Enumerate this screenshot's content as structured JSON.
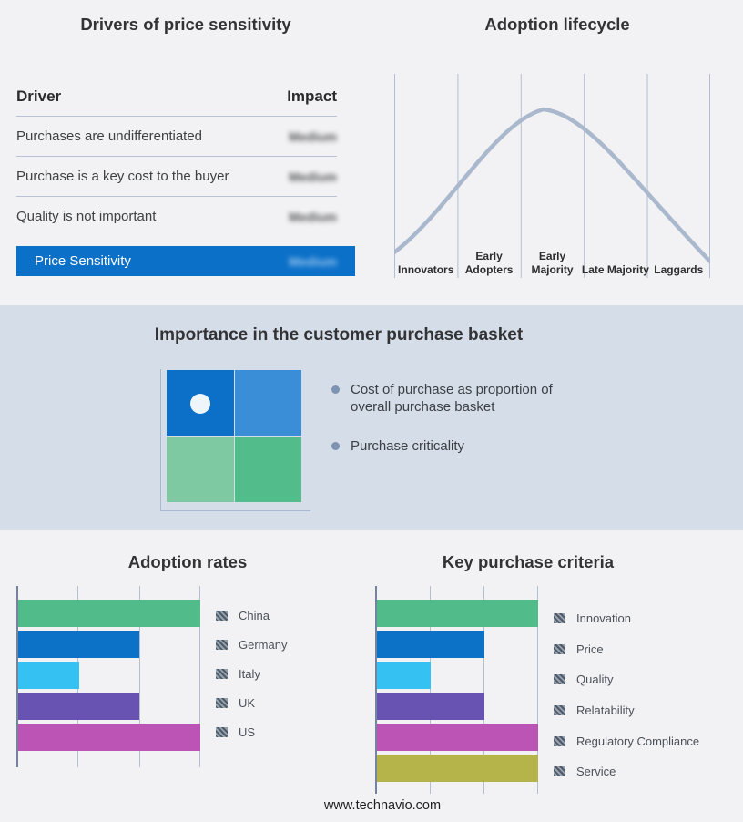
{
  "page": {
    "footer": "www.technavio.com"
  },
  "colors": {
    "page_bg": "#f2f2f4",
    "band_bg": "#d4dde8",
    "accent_blue": "#0b70c8",
    "grid_line": "#b3bfd2",
    "axis_line": "#74839e",
    "curve_line": "#a9b8cd",
    "bullet_dot": "#7e93b2"
  },
  "icons": {
    "legend_swatch": "hatched-square",
    "bullet": "round-dot",
    "quadrant_marker": "white-dot"
  },
  "drivers": {
    "title": "Drivers of price sensitivity",
    "columns": {
      "driver": "Driver",
      "impact": "Impact"
    },
    "rows": [
      {
        "driver": "Purchases are undifferentiated",
        "impact": "Medium",
        "impact_blurred": true
      },
      {
        "driver": "Purchase is a key cost to the buyer",
        "impact": "Medium",
        "impact_blurred": true
      },
      {
        "driver": "Quality is not important",
        "impact": "Medium",
        "impact_blurred": true
      }
    ],
    "highlight": {
      "label": "Price Sensitivity",
      "impact": "Medium",
      "impact_blurred": true,
      "bg": "#0b70c8"
    }
  },
  "basket": {
    "title": "Importance in the customer purchase basket",
    "bullets": [
      "Cost of purchase as proportion of overall purchase basket",
      "Purchase criticality"
    ],
    "quadrant": {
      "top_left": "#0c70c8",
      "top_right": "#3a8ed8",
      "bottom_left": "#7fc9a2",
      "bottom_right": "#52bd8a",
      "marker_position": "top_left"
    }
  },
  "chart_data": [
    {
      "id": "adoption_lifecycle",
      "type": "line",
      "title": "Adoption lifecycle",
      "shape": "bell-curve",
      "categories": [
        "Innovators",
        "Early Adopters",
        "Early Majority",
        "Late Majority",
        "Laggards"
      ],
      "x_norm": [
        0,
        10,
        25,
        40,
        47,
        60,
        75,
        90,
        100
      ],
      "y_norm": [
        5,
        22,
        55,
        86,
        92,
        80,
        52,
        20,
        3
      ],
      "ylim": [
        0,
        100
      ],
      "grid": "vertical-only",
      "line_color": "#a9b8cd",
      "legend_position": "none"
    },
    {
      "id": "adoption_rates",
      "type": "bar",
      "orientation": "horizontal",
      "title": "Adoption rates",
      "categories": [
        "China",
        "Germany",
        "Italy",
        "UK",
        "US"
      ],
      "values": [
        3,
        2,
        1,
        2,
        3
      ],
      "xlim": [
        0,
        3
      ],
      "colors": [
        "#52bb8a",
        "#0b72c8",
        "#35c2f2",
        "#6853b3",
        "#bc54b6"
      ],
      "grid": "vertical-only",
      "legend_position": "right"
    },
    {
      "id": "key_purchase_criteria",
      "type": "bar",
      "orientation": "horizontal",
      "title": "Key purchase criteria",
      "categories": [
        "Innovation",
        "Price",
        "Quality",
        "Relatability",
        "Regulatory Compliance",
        "Service"
      ],
      "values": [
        3,
        2,
        1,
        2,
        3,
        3
      ],
      "xlim": [
        0,
        3
      ],
      "colors": [
        "#52bb8a",
        "#0b72c8",
        "#35c2f2",
        "#6853b3",
        "#bc54b6",
        "#b5b44a"
      ],
      "grid": "vertical-only",
      "legend_position": "right"
    }
  ]
}
